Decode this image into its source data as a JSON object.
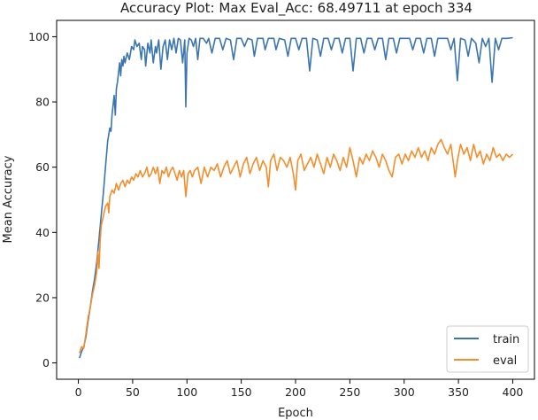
{
  "chart_data": {
    "type": "line",
    "title": "Accuracy Plot: Max Eval_Acc: 68.49711 at epoch 334",
    "xlabel": "Epoch",
    "ylabel": "Mean Accuracy",
    "xlim": [
      -20,
      420
    ],
    "ylim": [
      -5,
      105
    ],
    "xticks": [
      0,
      50,
      100,
      150,
      200,
      250,
      300,
      350,
      400
    ],
    "yticks": [
      0,
      20,
      40,
      60,
      80,
      100
    ],
    "grid": false,
    "legend_position": "lower-right",
    "series": [
      {
        "name": "train",
        "color": "#3b75af",
        "points": [
          [
            1,
            1.5
          ],
          [
            3,
            3.5
          ],
          [
            5,
            5
          ],
          [
            7,
            8
          ],
          [
            9,
            13
          ],
          [
            11,
            17
          ],
          [
            13,
            22
          ],
          [
            15,
            26
          ],
          [
            17,
            31
          ],
          [
            19,
            38
          ],
          [
            21,
            45
          ],
          [
            23,
            52
          ],
          [
            25,
            60
          ],
          [
            27,
            68
          ],
          [
            29,
            72
          ],
          [
            30,
            71
          ],
          [
            31,
            76
          ],
          [
            32,
            79
          ],
          [
            33,
            82
          ],
          [
            34,
            76
          ],
          [
            35,
            84
          ],
          [
            36,
            86
          ],
          [
            37,
            89
          ],
          [
            38,
            92
          ],
          [
            39,
            88
          ],
          [
            40,
            93
          ],
          [
            41,
            91
          ],
          [
            42,
            94
          ],
          [
            43,
            92
          ],
          [
            45,
            95
          ],
          [
            47,
            93
          ],
          [
            49,
            97
          ],
          [
            51,
            96
          ],
          [
            52,
            99
          ],
          [
            54,
            97
          ],
          [
            56,
            98
          ],
          [
            58,
            93
          ],
          [
            59,
            97
          ],
          [
            61,
            96
          ],
          [
            62,
            91
          ],
          [
            64,
            98
          ],
          [
            66,
            95
          ],
          [
            67,
            99
          ],
          [
            69,
            92
          ],
          [
            71,
            97
          ],
          [
            72,
            95
          ],
          [
            74,
            99
          ],
          [
            76,
            90
          ],
          [
            78,
            97
          ],
          [
            80,
            99
          ],
          [
            82,
            93
          ],
          [
            84,
            99
          ],
          [
            86,
            96
          ],
          [
            88,
            99.5
          ],
          [
            90,
            95
          ],
          [
            92,
            99.5
          ],
          [
            94,
            99
          ],
          [
            96,
            92
          ],
          [
            98,
            99
          ],
          [
            99,
            78.5
          ],
          [
            100,
            95
          ],
          [
            102,
            99.5
          ],
          [
            104,
            99
          ],
          [
            106,
            97
          ],
          [
            108,
            99.5
          ],
          [
            110,
            93
          ],
          [
            112,
            99.5
          ],
          [
            115,
            99.5
          ],
          [
            118,
            98
          ],
          [
            120,
            99.5
          ],
          [
            123,
            95
          ],
          [
            126,
            99.5
          ],
          [
            130,
            99.5
          ],
          [
            133,
            96
          ],
          [
            136,
            99.5
          ],
          [
            140,
            99
          ],
          [
            143,
            93
          ],
          [
            146,
            99.5
          ],
          [
            150,
            99.5
          ],
          [
            153,
            97
          ],
          [
            156,
            99.5
          ],
          [
            160,
            99
          ],
          [
            162,
            94
          ],
          [
            165,
            99.5
          ],
          [
            170,
            99.5
          ],
          [
            172,
            96
          ],
          [
            175,
            99.5
          ],
          [
            180,
            99.5
          ],
          [
            182,
            96
          ],
          [
            185,
            99.5
          ],
          [
            190,
            99
          ],
          [
            193,
            94
          ],
          [
            196,
            99.5
          ],
          [
            200,
            99.5
          ],
          [
            203,
            96
          ],
          [
            206,
            99.5
          ],
          [
            210,
            99.5
          ],
          [
            213,
            89.5
          ],
          [
            216,
            99.5
          ],
          [
            220,
            99
          ],
          [
            223,
            94
          ],
          [
            226,
            99.5
          ],
          [
            230,
            99.5
          ],
          [
            233,
            96
          ],
          [
            236,
            99.5
          ],
          [
            240,
            99.5
          ],
          [
            243,
            95
          ],
          [
            246,
            99.5
          ],
          [
            250,
            99.5
          ],
          [
            253,
            89.5
          ],
          [
            256,
            99.5
          ],
          [
            260,
            99.5
          ],
          [
            263,
            95
          ],
          [
            266,
            99.5
          ],
          [
            270,
            99.5
          ],
          [
            273,
            96
          ],
          [
            276,
            99.5
          ],
          [
            280,
            99.5
          ],
          [
            283,
            93
          ],
          [
            286,
            99.5
          ],
          [
            290,
            99.5
          ],
          [
            293,
            95
          ],
          [
            296,
            99.5
          ],
          [
            300,
            99.5
          ],
          [
            305,
            99.5
          ],
          [
            308,
            96
          ],
          [
            311,
            99.5
          ],
          [
            315,
            99.5
          ],
          [
            318,
            95
          ],
          [
            321,
            99.5
          ],
          [
            325,
            99.5
          ],
          [
            328,
            94
          ],
          [
            331,
            99.5
          ],
          [
            335,
            99.5
          ],
          [
            340,
            99.5
          ],
          [
            343,
            96
          ],
          [
            346,
            99.5
          ],
          [
            349,
            86.5
          ],
          [
            352,
            99.5
          ],
          [
            356,
            99
          ],
          [
            359,
            94
          ],
          [
            362,
            99.5
          ],
          [
            366,
            98
          ],
          [
            369,
            92
          ],
          [
            372,
            99.5
          ],
          [
            375,
            97
          ],
          [
            378,
            99.5
          ],
          [
            381,
            86
          ],
          [
            384,
            99.5
          ],
          [
            387,
            96
          ],
          [
            390,
            99.5
          ],
          [
            395,
            99.5
          ],
          [
            400,
            99.7
          ]
        ]
      },
      {
        "name": "eval",
        "color": "#f28e2b",
        "points": [
          [
            1,
            3
          ],
          [
            3,
            5
          ],
          [
            5,
            4.5
          ],
          [
            7,
            9
          ],
          [
            9,
            14
          ],
          [
            11,
            17
          ],
          [
            13,
            21
          ],
          [
            15,
            24
          ],
          [
            17,
            28
          ],
          [
            18,
            34
          ],
          [
            19,
            29
          ],
          [
            20,
            37
          ],
          [
            21,
            42
          ],
          [
            23,
            45
          ],
          [
            25,
            48
          ],
          [
            27,
            49
          ],
          [
            28,
            46
          ],
          [
            29,
            51
          ],
          [
            31,
            53
          ],
          [
            33,
            52
          ],
          [
            35,
            55
          ],
          [
            37,
            53
          ],
          [
            39,
            55
          ],
          [
            41,
            56
          ],
          [
            43,
            54
          ],
          [
            45,
            56
          ],
          [
            47,
            55
          ],
          [
            49,
            57
          ],
          [
            51,
            56
          ],
          [
            53,
            58
          ],
          [
            55,
            57
          ],
          [
            57,
            59
          ],
          [
            59,
            57
          ],
          [
            61,
            58
          ],
          [
            63,
            60
          ],
          [
            65,
            57
          ],
          [
            67,
            58
          ],
          [
            69,
            60
          ],
          [
            71,
            58
          ],
          [
            73,
            60
          ],
          [
            75,
            55
          ],
          [
            77,
            59
          ],
          [
            79,
            58
          ],
          [
            81,
            60
          ],
          [
            83,
            57
          ],
          [
            85,
            59
          ],
          [
            87,
            60
          ],
          [
            89,
            58
          ],
          [
            91,
            56
          ],
          [
            93,
            59
          ],
          [
            95,
            57
          ],
          [
            97,
            59
          ],
          [
            99,
            51
          ],
          [
            101,
            58
          ],
          [
            103,
            59
          ],
          [
            105,
            57
          ],
          [
            107,
            59
          ],
          [
            110,
            60
          ],
          [
            113,
            55
          ],
          [
            116,
            60
          ],
          [
            119,
            57
          ],
          [
            122,
            60
          ],
          [
            125,
            59
          ],
          [
            128,
            61
          ],
          [
            131,
            57
          ],
          [
            134,
            60
          ],
          [
            137,
            62
          ],
          [
            140,
            58
          ],
          [
            143,
            60
          ],
          [
            146,
            62
          ],
          [
            149,
            57
          ],
          [
            152,
            61
          ],
          [
            155,
            63
          ],
          [
            158,
            58
          ],
          [
            161,
            61
          ],
          [
            164,
            63
          ],
          [
            167,
            59
          ],
          [
            170,
            62
          ],
          [
            173,
            60
          ],
          [
            175,
            54
          ],
          [
            177,
            62
          ],
          [
            180,
            64
          ],
          [
            183,
            59
          ],
          [
            186,
            63
          ],
          [
            189,
            62
          ],
          [
            192,
            60
          ],
          [
            195,
            63
          ],
          [
            198,
            58
          ],
          [
            200,
            53
          ],
          [
            202,
            62
          ],
          [
            205,
            64
          ],
          [
            208,
            59
          ],
          [
            211,
            61
          ],
          [
            214,
            63
          ],
          [
            217,
            60
          ],
          [
            220,
            64
          ],
          [
            223,
            61
          ],
          [
            226,
            58
          ],
          [
            229,
            63
          ],
          [
            232,
            60
          ],
          [
            235,
            64
          ],
          [
            238,
            62
          ],
          [
            241,
            59
          ],
          [
            244,
            63
          ],
          [
            247,
            60
          ],
          [
            250,
            66
          ],
          [
            253,
            62
          ],
          [
            256,
            57
          ],
          [
            259,
            63
          ],
          [
            262,
            61
          ],
          [
            265,
            64
          ],
          [
            268,
            62
          ],
          [
            271,
            65
          ],
          [
            274,
            63
          ],
          [
            277,
            60
          ],
          [
            280,
            64
          ],
          [
            283,
            62
          ],
          [
            286,
            59
          ],
          [
            289,
            57
          ],
          [
            292,
            63
          ],
          [
            295,
            64
          ],
          [
            298,
            61
          ],
          [
            301,
            64
          ],
          [
            304,
            62
          ],
          [
            307,
            65
          ],
          [
            310,
            63
          ],
          [
            313,
            66
          ],
          [
            316,
            63
          ],
          [
            319,
            65
          ],
          [
            322,
            62
          ],
          [
            325,
            66
          ],
          [
            328,
            64
          ],
          [
            331,
            67
          ],
          [
            334,
            68.5
          ],
          [
            337,
            66
          ],
          [
            340,
            64
          ],
          [
            343,
            67
          ],
          [
            345,
            62
          ],
          [
            347,
            57
          ],
          [
            349,
            62
          ],
          [
            352,
            67
          ],
          [
            355,
            64
          ],
          [
            358,
            66
          ],
          [
            361,
            62
          ],
          [
            364,
            67
          ],
          [
            367,
            63
          ],
          [
            370,
            65
          ],
          [
            373,
            61
          ],
          [
            376,
            64
          ],
          [
            379,
            62
          ],
          [
            382,
            66
          ],
          [
            385,
            63
          ],
          [
            388,
            64
          ],
          [
            391,
            62
          ],
          [
            394,
            64
          ],
          [
            397,
            63
          ],
          [
            400,
            64
          ]
        ]
      }
    ]
  }
}
